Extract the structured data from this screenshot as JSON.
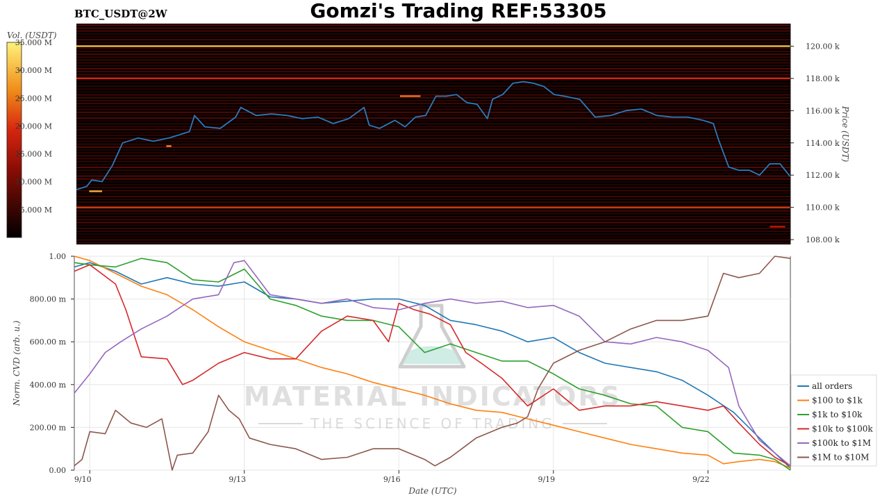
{
  "title": "Gomzi's Trading REF:53305",
  "symbol": "BTC_USDT@2W",
  "watermark": {
    "main": "MATERIAL INDICATORS",
    "sub": "THE SCIENCE OF TRADING"
  },
  "colors": {
    "price_line": "#2b7bbd",
    "heat_low": "#000000",
    "heat_mid": "#c41e0c",
    "heat_high": "#ffe64d",
    "all_orders": "#1f77b4",
    "r100_1k": "#ff7f0e",
    "r1k_10k": "#2ca02c",
    "r10k_100k": "#d62728",
    "r100k_1m": "#9467bd",
    "r1m_10m": "#8c564b"
  },
  "chart_data": [
    {
      "type": "heatmap",
      "title": "Gomzi's Trading REF:53305",
      "ylabel": "Price (USDT)",
      "ylim": [
        107700,
        121400
      ],
      "yticks": [
        "108.00 k",
        "110.00 k",
        "112.00 k",
        "114.00 k",
        "116.00 k",
        "118.00 k",
        "120.00 k"
      ],
      "ytick_values": [
        108000,
        110000,
        112000,
        114000,
        116000,
        118000,
        120000
      ],
      "colorbar": {
        "label": "Vol. (USDT)",
        "ticks": [
          "5.000 M",
          "10.000 M",
          "15.000 M",
          "20.000 M",
          "25.000 M",
          "30.000 M",
          "35.000 M"
        ],
        "tick_values": [
          5,
          10,
          15,
          20,
          25,
          30,
          35
        ],
        "range": [
          0,
          35
        ]
      },
      "xlim": [
        9.7,
        23.6
      ],
      "price_series": {
        "x": [
          9.7,
          9.9,
          10.0,
          10.2,
          10.4,
          10.6,
          10.9,
          11.2,
          11.5,
          11.7,
          11.9,
          12.0,
          12.2,
          12.5,
          12.8,
          12.9,
          13.2,
          13.5,
          13.8,
          14.1,
          14.4,
          14.7,
          15.0,
          15.3,
          15.4,
          15.6,
          15.9,
          16.1,
          16.3,
          16.5,
          16.7,
          16.9,
          17.1,
          17.3,
          17.5,
          17.7,
          17.8,
          18.0,
          18.2,
          18.4,
          18.6,
          18.8,
          19.0,
          19.2,
          19.5,
          19.8,
          20.1,
          20.4,
          20.7,
          21.0,
          21.3,
          21.6,
          21.9,
          22.1,
          22.2,
          22.4,
          22.6,
          22.8,
          23.0,
          23.2,
          23.4,
          23.6
        ],
        "y": [
          111100,
          111300,
          111700,
          111600,
          112600,
          114000,
          114300,
          114100,
          114300,
          114500,
          114700,
          115700,
          115000,
          114900,
          115600,
          116200,
          115700,
          115800,
          115700,
          115500,
          115600,
          115200,
          115500,
          116200,
          115100,
          114900,
          115400,
          115000,
          115600,
          115700,
          116900,
          116900,
          117000,
          116500,
          116400,
          115500,
          116700,
          117000,
          117700,
          117800,
          117700,
          117500,
          117000,
          116900,
          116700,
          115600,
          115700,
          116000,
          116100,
          115700,
          115600,
          115600,
          115400,
          115200,
          114200,
          112500,
          112300,
          112300,
          112000,
          112700,
          112700,
          111900
        ]
      },
      "bright_levels": [
        {
          "price": 120000,
          "intensity": 0.92
        },
        {
          "price": 118000,
          "intensity": 0.55
        },
        {
          "price": 110000,
          "intensity": 0.6
        },
        {
          "price": 116900,
          "intensity": 0.75,
          "x_start": 16.0,
          "x_end": 16.4
        },
        {
          "price": 111000,
          "intensity": 0.9,
          "x_start": 9.95,
          "x_end": 10.2
        },
        {
          "price": 113800,
          "intensity": 0.8,
          "x_start": 11.45,
          "x_end": 11.55
        },
        {
          "price": 108800,
          "intensity": 0.5,
          "x_start": 23.2,
          "x_end": 23.5
        }
      ]
    },
    {
      "type": "line",
      "xlabel": "Date (UTC)",
      "ylabel": "Norm. CVD (arb. u.)",
      "ylim": [
        0,
        1
      ],
      "xlim": [
        9.7,
        23.6
      ],
      "yticks": [
        "0.00",
        "200.00 m",
        "400.00 m",
        "600.00 m",
        "800.00 m",
        "1.00"
      ],
      "ytick_values": [
        0,
        0.2,
        0.4,
        0.6,
        0.8,
        1.0
      ],
      "xticks": [
        "9/10",
        "9/13",
        "9/16",
        "9/19",
        "9/22"
      ],
      "xtick_values": [
        10,
        13,
        16,
        19,
        22
      ],
      "legend_position": "lower-right",
      "series": [
        {
          "name": "all orders",
          "x": [
            9.7,
            10.0,
            10.5,
            11.0,
            11.5,
            12.0,
            12.5,
            13.0,
            13.5,
            14.0,
            14.5,
            15.0,
            15.5,
            16.0,
            16.5,
            17.0,
            17.5,
            18.0,
            18.5,
            19.0,
            19.5,
            20.0,
            20.5,
            21.0,
            21.5,
            22.0,
            22.5,
            23.0,
            23.3,
            23.6
          ],
          "y": [
            0.95,
            0.97,
            0.93,
            0.87,
            0.9,
            0.87,
            0.86,
            0.88,
            0.81,
            0.8,
            0.78,
            0.79,
            0.8,
            0.8,
            0.77,
            0.7,
            0.68,
            0.65,
            0.6,
            0.62,
            0.55,
            0.5,
            0.48,
            0.46,
            0.42,
            0.35,
            0.27,
            0.15,
            0.08,
            0.01
          ]
        },
        {
          "name": "$100 to $1k",
          "x": [
            9.7,
            10.0,
            10.5,
            11.0,
            11.5,
            12.0,
            12.5,
            13.0,
            13.5,
            14.0,
            14.5,
            15.0,
            15.5,
            16.0,
            16.5,
            17.0,
            17.5,
            18.0,
            18.5,
            19.0,
            19.5,
            20.0,
            20.5,
            21.0,
            21.5,
            22.0,
            22.3,
            22.6,
            23.0,
            23.3,
            23.6
          ],
          "y": [
            1.0,
            0.98,
            0.92,
            0.86,
            0.82,
            0.75,
            0.67,
            0.6,
            0.56,
            0.52,
            0.48,
            0.45,
            0.41,
            0.38,
            0.35,
            0.31,
            0.28,
            0.27,
            0.24,
            0.21,
            0.18,
            0.15,
            0.12,
            0.1,
            0.08,
            0.07,
            0.03,
            0.04,
            0.05,
            0.04,
            0.01
          ]
        },
        {
          "name": "$1k to $10k",
          "x": [
            9.7,
            10.0,
            10.5,
            11.0,
            11.5,
            12.0,
            12.5,
            13.0,
            13.5,
            14.0,
            14.5,
            15.0,
            15.5,
            16.0,
            16.5,
            17.0,
            17.5,
            18.0,
            18.5,
            19.0,
            19.5,
            20.0,
            20.5,
            21.0,
            21.5,
            22.0,
            22.5,
            23.0,
            23.3,
            23.6
          ],
          "y": [
            0.97,
            0.96,
            0.95,
            0.99,
            0.97,
            0.89,
            0.88,
            0.94,
            0.8,
            0.77,
            0.72,
            0.7,
            0.7,
            0.67,
            0.55,
            0.59,
            0.55,
            0.51,
            0.51,
            0.45,
            0.38,
            0.35,
            0.31,
            0.3,
            0.2,
            0.18,
            0.08,
            0.07,
            0.05,
            0.0
          ]
        },
        {
          "name": "$10k to $100k",
          "x": [
            9.7,
            10.0,
            10.5,
            10.7,
            11.0,
            11.5,
            11.8,
            12.0,
            12.5,
            13.0,
            13.5,
            14.0,
            14.5,
            15.0,
            15.5,
            15.8,
            16.0,
            16.3,
            16.6,
            17.0,
            17.3,
            17.6,
            18.0,
            18.5,
            19.0,
            19.5,
            20.0,
            20.5,
            21.0,
            21.5,
            22.0,
            22.3,
            22.6,
            23.0,
            23.3,
            23.6
          ],
          "y": [
            0.93,
            0.96,
            0.87,
            0.75,
            0.53,
            0.52,
            0.4,
            0.42,
            0.5,
            0.55,
            0.52,
            0.52,
            0.65,
            0.72,
            0.7,
            0.6,
            0.78,
            0.75,
            0.73,
            0.68,
            0.55,
            0.5,
            0.43,
            0.3,
            0.38,
            0.28,
            0.3,
            0.3,
            0.32,
            0.3,
            0.28,
            0.3,
            0.22,
            0.12,
            0.06,
            0.02
          ]
        },
        {
          "name": "$100k to $1M",
          "x": [
            9.7,
            10.0,
            10.3,
            10.6,
            11.0,
            11.5,
            12.0,
            12.5,
            12.8,
            13.0,
            13.5,
            14.0,
            14.5,
            15.0,
            15.5,
            16.0,
            16.5,
            17.0,
            17.5,
            18.0,
            18.5,
            19.0,
            19.5,
            20.0,
            20.5,
            21.0,
            21.5,
            22.0,
            22.4,
            22.6,
            23.0,
            23.3,
            23.6
          ],
          "y": [
            0.36,
            0.45,
            0.55,
            0.6,
            0.66,
            0.72,
            0.8,
            0.82,
            0.97,
            0.98,
            0.82,
            0.8,
            0.78,
            0.8,
            0.76,
            0.75,
            0.78,
            0.8,
            0.78,
            0.79,
            0.76,
            0.77,
            0.72,
            0.6,
            0.59,
            0.62,
            0.6,
            0.56,
            0.48,
            0.3,
            0.14,
            0.08,
            0.02
          ]
        },
        {
          "name": "$1M to $10M",
          "x": [
            9.7,
            9.85,
            10.0,
            10.3,
            10.5,
            10.8,
            11.1,
            11.4,
            11.6,
            11.7,
            12.0,
            12.3,
            12.5,
            12.7,
            12.9,
            13.1,
            13.5,
            14.0,
            14.5,
            15.0,
            15.5,
            16.0,
            16.5,
            16.7,
            17.0,
            17.5,
            18.0,
            18.3,
            18.5,
            18.7,
            19.0,
            19.5,
            20.0,
            20.5,
            21.0,
            21.5,
            22.0,
            22.3,
            22.6,
            23.0,
            23.3,
            23.6
          ],
          "y": [
            0.02,
            0.05,
            0.18,
            0.17,
            0.28,
            0.22,
            0.2,
            0.24,
            0.0,
            0.07,
            0.08,
            0.18,
            0.35,
            0.28,
            0.24,
            0.15,
            0.12,
            0.1,
            0.05,
            0.06,
            0.1,
            0.1,
            0.05,
            0.02,
            0.06,
            0.15,
            0.2,
            0.22,
            0.25,
            0.38,
            0.5,
            0.56,
            0.6,
            0.66,
            0.7,
            0.7,
            0.72,
            0.92,
            0.9,
            0.92,
            1.0,
            0.99
          ]
        }
      ]
    }
  ]
}
